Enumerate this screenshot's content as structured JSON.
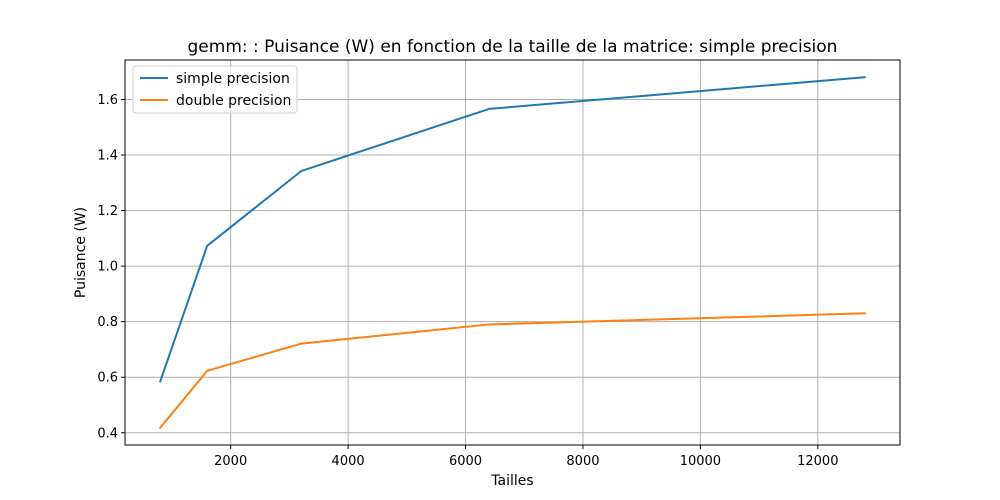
{
  "chart_data": {
    "type": "line",
    "title": "gemm: : Puisance (W) en fonction de la taille de la matrice: simple precision",
    "xlabel": "Tailles",
    "ylabel": "Puisance (W)",
    "x": [
      800,
      1600,
      3200,
      6400,
      12800
    ],
    "series": [
      {
        "name": "simple precision",
        "color": "#1f77b4",
        "values": [
          0.585,
          1.073,
          1.342,
          1.566,
          1.68
        ]
      },
      {
        "name": "double precision",
        "color": "#ff7f0e",
        "values": [
          0.418,
          0.623,
          0.721,
          0.79,
          0.83
        ]
      }
    ],
    "xlim": [
      200,
      13400
    ],
    "ylim": [
      0.356,
      1.742
    ],
    "xticks": [
      2000,
      4000,
      6000,
      8000,
      10000,
      12000
    ],
    "yticks": [
      0.4,
      0.6,
      0.8,
      1.0,
      1.2,
      1.4,
      1.6
    ],
    "xtick_labels": [
      "2000",
      "4000",
      "6000",
      "8000",
      "10000",
      "12000"
    ],
    "ytick_labels": [
      "0.4",
      "0.6",
      "0.8",
      "1.0",
      "1.2",
      "1.4",
      "1.6"
    ],
    "grid": true,
    "legend_position": "top-left"
  }
}
